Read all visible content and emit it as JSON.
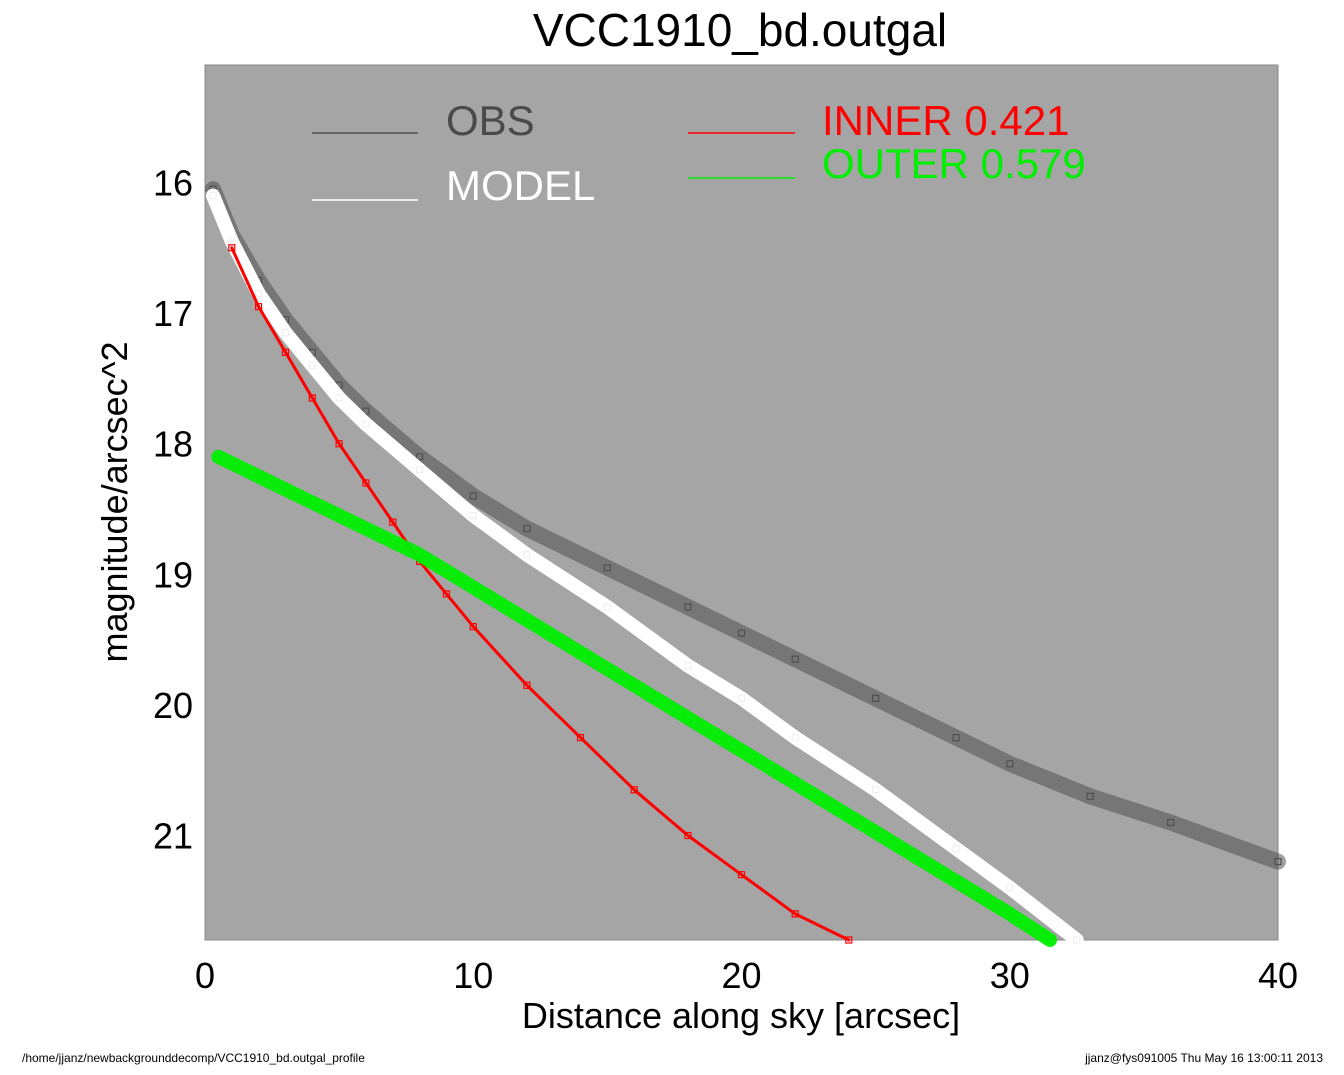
{
  "chart_data": {
    "type": "scatter",
    "title": "VCC1910_bd.outgal",
    "xlabel": "Distance along sky [arcsec]",
    "ylabel": "magnitude/arcsec^2",
    "xlim": [
      0,
      40
    ],
    "ylim": [
      21.8,
      15.1
    ],
    "y_inverted": true,
    "x_ticks": [
      "0",
      "10",
      "20",
      "30",
      "40"
    ],
    "y_ticks": [
      "16",
      "17",
      "18",
      "19",
      "20",
      "21"
    ],
    "background": "#a5a5a5",
    "legend": [
      {
        "label": "OBS",
        "color": "#505050"
      },
      {
        "label": "MODEL",
        "color": "#ffffff"
      },
      {
        "label": "INNER  0.421",
        "color": "#ff0000"
      },
      {
        "label": "OUTER  0.579",
        "color": "#00ee00"
      }
    ],
    "series": [
      {
        "name": "OBS",
        "color": "#505050",
        "x": [
          0.3,
          1,
          2,
          3,
          4,
          5,
          6,
          8,
          10,
          12,
          15,
          18,
          20,
          22,
          25,
          28,
          30,
          33,
          36,
          40
        ],
        "y": [
          16.05,
          16.4,
          16.75,
          17.05,
          17.3,
          17.55,
          17.75,
          18.1,
          18.4,
          18.65,
          18.95,
          19.25,
          19.45,
          19.65,
          19.95,
          20.25,
          20.45,
          20.7,
          20.9,
          21.2
        ]
      },
      {
        "name": "MODEL",
        "color": "#ffffff",
        "x": [
          0.3,
          1,
          2,
          3,
          4,
          5,
          6,
          8,
          10,
          12,
          15,
          18,
          20,
          22,
          25,
          28,
          30,
          32.5
        ],
        "y": [
          16.1,
          16.45,
          16.85,
          17.15,
          17.4,
          17.65,
          17.85,
          18.2,
          18.55,
          18.85,
          19.25,
          19.7,
          19.95,
          20.25,
          20.65,
          21.1,
          21.4,
          21.8
        ]
      },
      {
        "name": "INNER  0.421",
        "color": "#ff0000",
        "x": [
          1,
          2,
          3,
          4,
          5,
          6,
          7,
          8,
          9,
          10,
          12,
          14,
          16,
          18,
          20,
          22,
          24
        ],
        "y": [
          16.5,
          16.95,
          17.3,
          17.65,
          18.0,
          18.3,
          18.6,
          18.9,
          19.15,
          19.4,
          19.85,
          20.25,
          20.65,
          21.0,
          21.3,
          21.6,
          21.8
        ]
      },
      {
        "name": "OUTER  0.579",
        "color": "#00ee00",
        "x": [
          0.5,
          2,
          4,
          6,
          8,
          10,
          12,
          14,
          16,
          18,
          20,
          22,
          24,
          26,
          28,
          30,
          31.5
        ],
        "y": [
          18.1,
          18.25,
          18.45,
          18.65,
          18.85,
          19.1,
          19.35,
          19.6,
          19.85,
          20.1,
          20.35,
          20.6,
          20.85,
          21.1,
          21.35,
          21.6,
          21.8
        ]
      }
    ]
  },
  "footer": {
    "left": "/home/jjanz/newbackgrounddecomp/VCC1910_bd.outgal_profile",
    "right": "jjanz@fys091005  Thu May 16 13:00:11 2013"
  }
}
